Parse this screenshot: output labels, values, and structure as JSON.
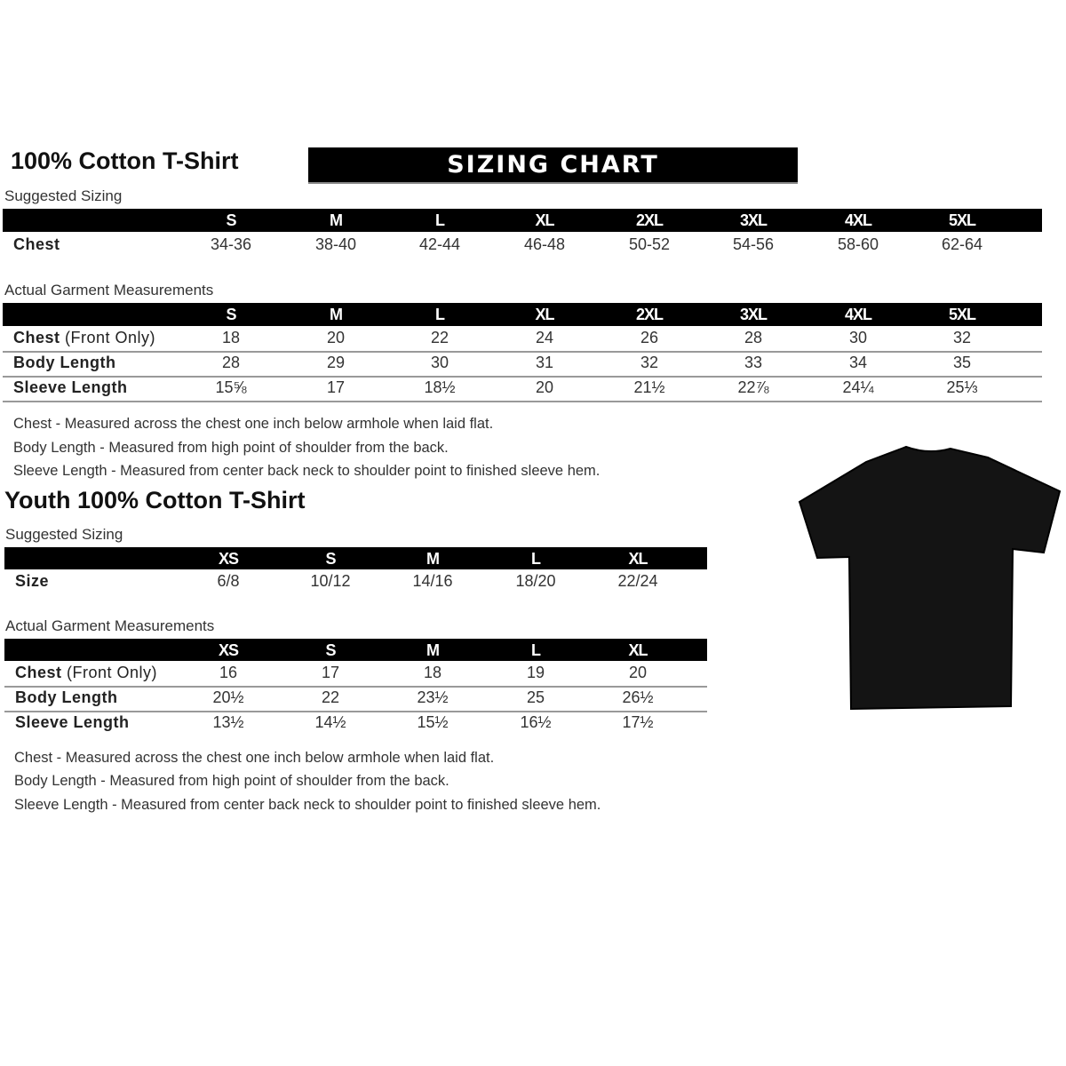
{
  "adult": {
    "title": "100% Cotton T-Shirt",
    "banner": "SIZING CHART",
    "suggested_label": "Suggested Sizing",
    "sizes": [
      "S",
      "M",
      "L",
      "XL",
      "2XL",
      "3XL",
      "4XL",
      "5XL"
    ],
    "suggested_rows": [
      {
        "label": "Chest",
        "values": [
          "34-36",
          "38-40",
          "42-44",
          "46-48",
          "50-52",
          "54-56",
          "58-60",
          "62-64"
        ]
      }
    ],
    "measurements_label": "Actual Garment Measurements",
    "measurement_rows": [
      {
        "label": "Chest",
        "label_suffix": " (Front Only)",
        "values": [
          "18",
          "20",
          "22",
          "24",
          "26",
          "28",
          "30",
          "32"
        ]
      },
      {
        "label": "Body Length",
        "label_suffix": "",
        "values": [
          "28",
          "29",
          "30",
          "31",
          "32",
          "33",
          "34",
          "35"
        ]
      },
      {
        "label": "Sleeve Length",
        "label_suffix": "",
        "values": [
          "15⅝",
          "17",
          "18½",
          "20",
          "21½",
          "22⅞",
          "24¼",
          "25⅓"
        ]
      }
    ],
    "notes": [
      "Chest - Measured across the chest one inch below armhole when laid flat.",
      "Body Length - Measured from high point of shoulder from the back.",
      "Sleeve Length - Measured from center back neck to shoulder point to finished sleeve hem."
    ]
  },
  "youth": {
    "title": "Youth 100% Cotton T-Shirt",
    "suggested_label": "Suggested Sizing",
    "sizes": [
      "XS",
      "S",
      "M",
      "L",
      "XL"
    ],
    "suggested_rows": [
      {
        "label": "Size",
        "values": [
          "6/8",
          "10/12",
          "14/16",
          "18/20",
          "22/24"
        ]
      }
    ],
    "measurements_label": "Actual Garment Measurements",
    "measurement_rows": [
      {
        "label": "Chest",
        "label_suffix": " (Front Only)",
        "values": [
          "16",
          "17",
          "18",
          "19",
          "20"
        ]
      },
      {
        "label": "Body Length",
        "label_suffix": "",
        "values": [
          "20½",
          "22",
          "23½",
          "25",
          "26½"
        ]
      },
      {
        "label": "Sleeve Length",
        "label_suffix": "",
        "values": [
          "13½",
          "14½",
          "15½",
          "16½",
          "17½"
        ]
      }
    ],
    "notes": [
      "Chest - Measured across the chest one inch below armhole when laid flat.",
      "Body Length - Measured from high point of shoulder from the back.",
      "Sleeve Length - Measured from center back neck to shoulder point to finished sleeve hem."
    ]
  },
  "image": {
    "icon": "black-t-shirt-icon",
    "color": "#141414"
  }
}
